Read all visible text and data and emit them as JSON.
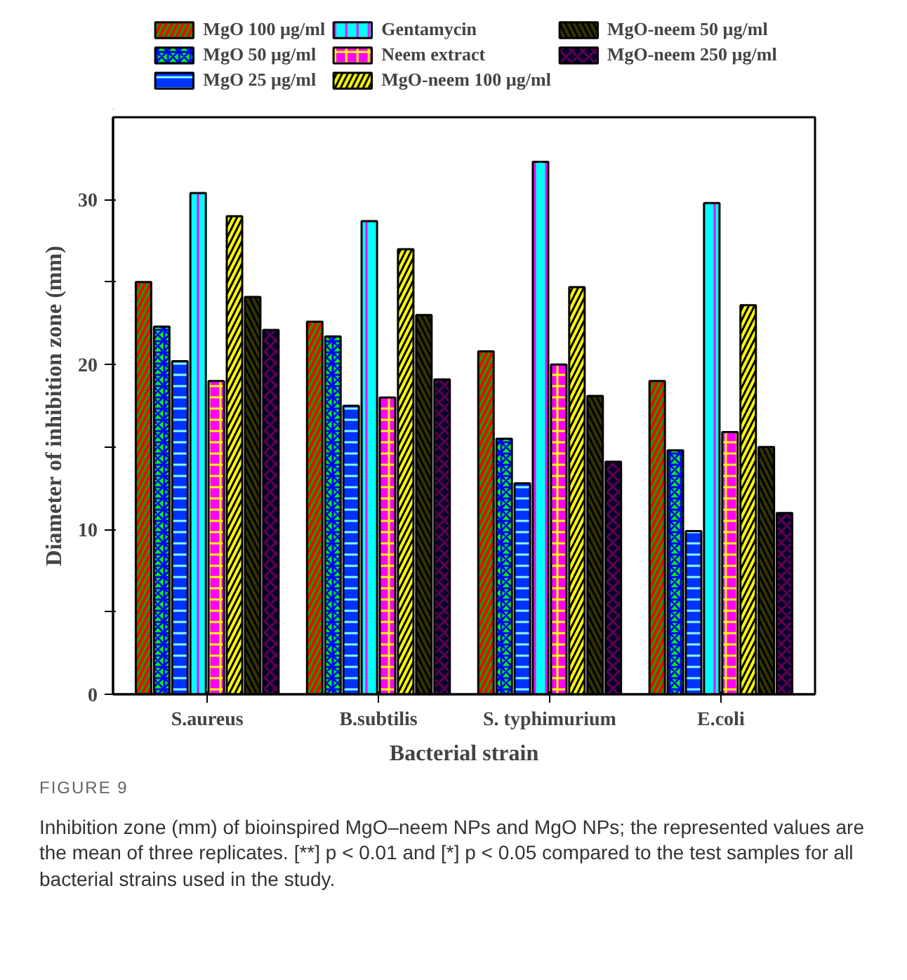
{
  "chart_data": {
    "type": "bar",
    "xlabel": "Bacterial strain",
    "ylabel": "Diameter of inhibition zone (mm)",
    "categories": [
      "S.aureus",
      "B.subtilis",
      "S. typhimurium",
      "E.coli"
    ],
    "series": [
      {
        "name": "MgO 100 µg/ml",
        "color": "#ff0000",
        "values": [
          25,
          22.6,
          20.8,
          19
        ]
      },
      {
        "name": "MgO 50 µg/ml",
        "color": "#00ff00",
        "values": [
          22.3,
          21.7,
          15.5,
          14.8
        ]
      },
      {
        "name": "MgO 25 µg/ml",
        "color": "#0033ff",
        "values": [
          20.2,
          17.5,
          12.8,
          9.9
        ]
      },
      {
        "name": "Gentamycin",
        "color": "#00ffff",
        "values": [
          30.4,
          28.7,
          32.3,
          29.8
        ]
      },
      {
        "name": "Neem extract",
        "color": "#ff00ff",
        "values": [
          19,
          18,
          20,
          15.9
        ]
      },
      {
        "name": "MgO-neem 100 µg/ml",
        "color": "#ffff00",
        "values": [
          29,
          27,
          24.7,
          23.6
        ]
      },
      {
        "name": "MgO-neem 50 µg/ml",
        "color": "#333300",
        "values": [
          24.1,
          23,
          18.1,
          15
        ]
      },
      {
        "name": "MgO-neem 250 µg/ml",
        "color": "#000033",
        "values": [
          22.1,
          19.1,
          14.1,
          11
        ]
      }
    ],
    "ylim": [
      0,
      35
    ],
    "yticks": [
      0,
      {
        "value": 5,
        "label": null
      },
      10,
      {
        "value": 15,
        "label": null
      },
      20,
      {
        "value": 25,
        "label": null
      },
      30
    ],
    "grid": false,
    "legend": "top",
    "annotations": [
      "FIGURE 9",
      "Inhibition zone (mm) of bioinspired MgO–neem NPs and MgO NPs; the represented values are the mean of three replicates. [**] p < 0.01 and [*] p < 0.05 compared to the test samples for all bacterial strains used in the study."
    ]
  }
}
